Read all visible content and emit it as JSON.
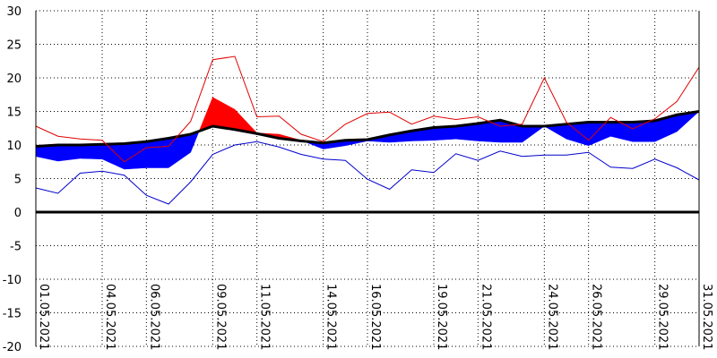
{
  "chart_data": {
    "type": "line",
    "title": "",
    "xlabel": "",
    "ylabel": "",
    "ylim": [
      -20,
      30
    ],
    "yticks": [
      30,
      25,
      20,
      15,
      10,
      5,
      0,
      -5,
      -10,
      -15,
      -20
    ],
    "xlim": [
      1,
      31
    ],
    "x_tick_days": [
      1,
      4,
      6,
      9,
      11,
      14,
      16,
      19,
      21,
      24,
      26,
      29,
      31
    ],
    "x_tick_labels": [
      "01.05.2021",
      "04.05.2021",
      "06.05.2021",
      "09.05.2021",
      "11.05.2021",
      "14.05.2021",
      "16.05.2021",
      "19.05.2021",
      "21.05.2021",
      "24.05.2021",
      "26.05.2021",
      "29.05.2021",
      "31.05.2021"
    ],
    "grid": true,
    "colors": {
      "max": "#e00000",
      "min": "#0000cc",
      "mean": "#000000",
      "above_normal_fill": "#ff0000",
      "below_normal_fill": "#0000ff",
      "zero_line": "#000000",
      "grid": "#000000"
    },
    "series": [
      {
        "key": "max",
        "values": [
          12.8,
          11.3,
          10.9,
          10.7,
          7.5,
          9.6,
          9.8,
          13.5,
          22.7,
          23.2,
          14.2,
          14.3,
          11.6,
          10.5,
          13.1,
          14.7,
          14.9,
          13.1,
          14.3,
          13.8,
          14.2,
          12.8,
          13.1,
          20.0,
          13.4,
          10.7,
          14.1,
          12.4,
          13.9,
          16.5,
          21.6
        ]
      },
      {
        "key": "mean",
        "values": [
          8.3,
          7.6,
          8.0,
          7.9,
          6.4,
          6.6,
          6.6,
          8.9,
          17.1,
          15.3,
          11.8,
          11.6,
          10.7,
          9.4,
          9.9,
          10.6,
          10.4,
          10.6,
          10.7,
          10.9,
          10.6,
          10.4,
          10.4,
          12.8,
          10.9,
          9.9,
          11.3,
          10.5,
          10.5,
          12.0,
          15.0
        ]
      },
      {
        "key": "min",
        "values": [
          3.6,
          2.8,
          5.8,
          6.1,
          5.5,
          2.5,
          1.2,
          4.5,
          8.6,
          10.0,
          10.5,
          9.7,
          8.6,
          7.9,
          7.7,
          4.9,
          3.4,
          6.3,
          5.9,
          8.7,
          7.7,
          9.1,
          8.3,
          8.5,
          8.5,
          8.9,
          6.7,
          6.5,
          7.9,
          6.6,
          4.8
        ]
      },
      {
        "key": "normal",
        "values": [
          9.8,
          10.0,
          10.0,
          10.1,
          10.2,
          10.5,
          11.0,
          11.6,
          12.8,
          12.3,
          11.7,
          11.0,
          10.6,
          10.3,
          10.7,
          10.8,
          11.5,
          12.1,
          12.6,
          12.8,
          13.2,
          13.7,
          12.8,
          12.8,
          13.1,
          13.4,
          13.4,
          13.4,
          13.6,
          14.5,
          15.0
        ]
      }
    ]
  }
}
